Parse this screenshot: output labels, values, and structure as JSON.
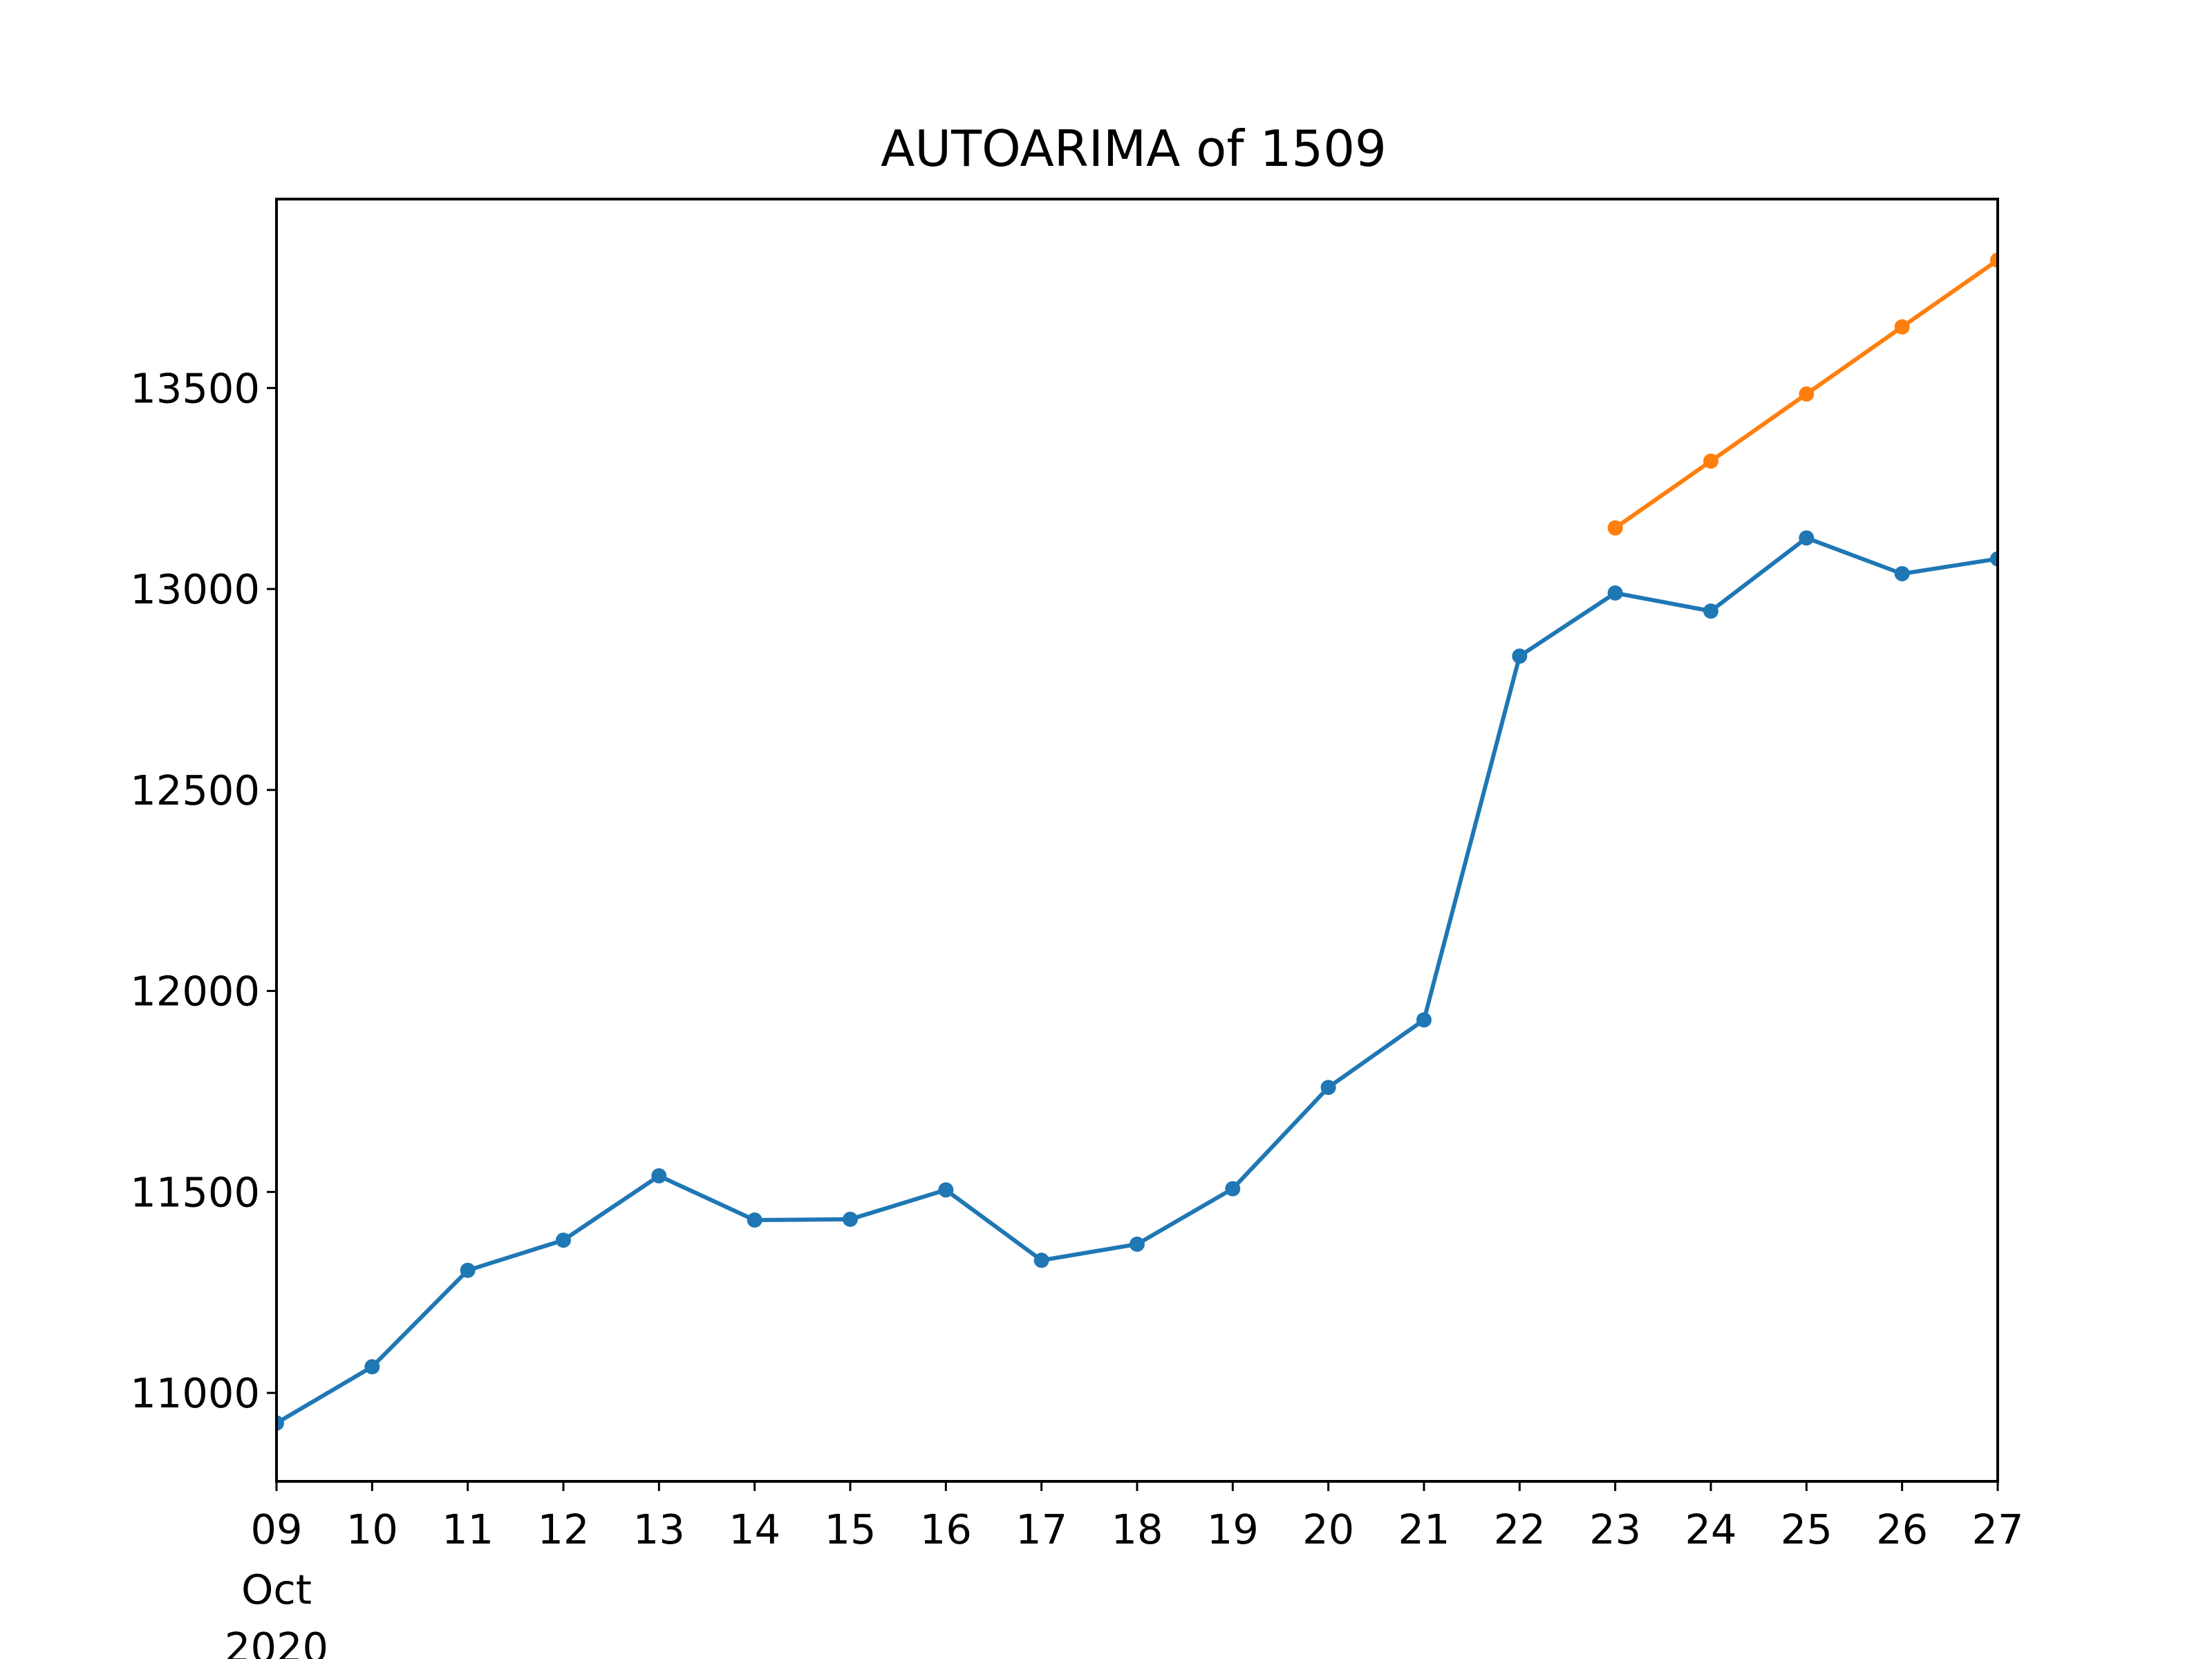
{
  "chart_data": {
    "type": "line",
    "title": "AUTOARIMA of 1509",
    "xlabel": "",
    "ylabel": "",
    "x": [
      "2020-10-09",
      "2020-10-10",
      "2020-10-11",
      "2020-10-12",
      "2020-10-13",
      "2020-10-14",
      "2020-10-15",
      "2020-10-16",
      "2020-10-17",
      "2020-10-18",
      "2020-10-19",
      "2020-10-20",
      "2020-10-21",
      "2020-10-22",
      "2020-10-23",
      "2020-10-24",
      "2020-10-25",
      "2020-10-26",
      "2020-10-27"
    ],
    "x_tick_labels": [
      "09",
      "10",
      "11",
      "12",
      "13",
      "14",
      "15",
      "16",
      "17",
      "18",
      "19",
      "20",
      "21",
      "22",
      "23",
      "24",
      "25",
      "26",
      "27"
    ],
    "x_tick_sublabels": [
      "Oct",
      "2020"
    ],
    "xlim": [
      "2020-10-09",
      "2020-10-27"
    ],
    "y_ticks": [
      11000,
      11500,
      12000,
      12500,
      13000,
      13500
    ],
    "y_tick_labels": [
      "11000",
      "11500",
      "12000",
      "12500",
      "13000",
      "13500"
    ],
    "ylim": [
      10780,
      13970
    ],
    "grid": false,
    "series": [
      {
        "color": "#1f77b4",
        "x": [
          "2020-10-09",
          "2020-10-10",
          "2020-10-11",
          "2020-10-12",
          "2020-10-13",
          "2020-10-14",
          "2020-10-15",
          "2020-10-16",
          "2020-10-17",
          "2020-10-18",
          "2020-10-19",
          "2020-10-20",
          "2020-10-21",
          "2020-10-22",
          "2020-10-23",
          "2020-10-24",
          "2020-10-25",
          "2020-10-26",
          "2020-10-27"
        ],
        "values": [
          10925,
          11065,
          11305,
          11380,
          11540,
          11430,
          11432,
          11505,
          11330,
          11370,
          11508,
          11760,
          11928,
          12833,
          12990,
          12945,
          13127,
          13038,
          13075
        ]
      },
      {
        "color": "#ff7f0e",
        "x": [
          "2020-10-23",
          "2020-10-24",
          "2020-10-25",
          "2020-10-26",
          "2020-10-27"
        ],
        "values": [
          13152,
          13318,
          13485,
          13652,
          13818
        ]
      }
    ]
  }
}
